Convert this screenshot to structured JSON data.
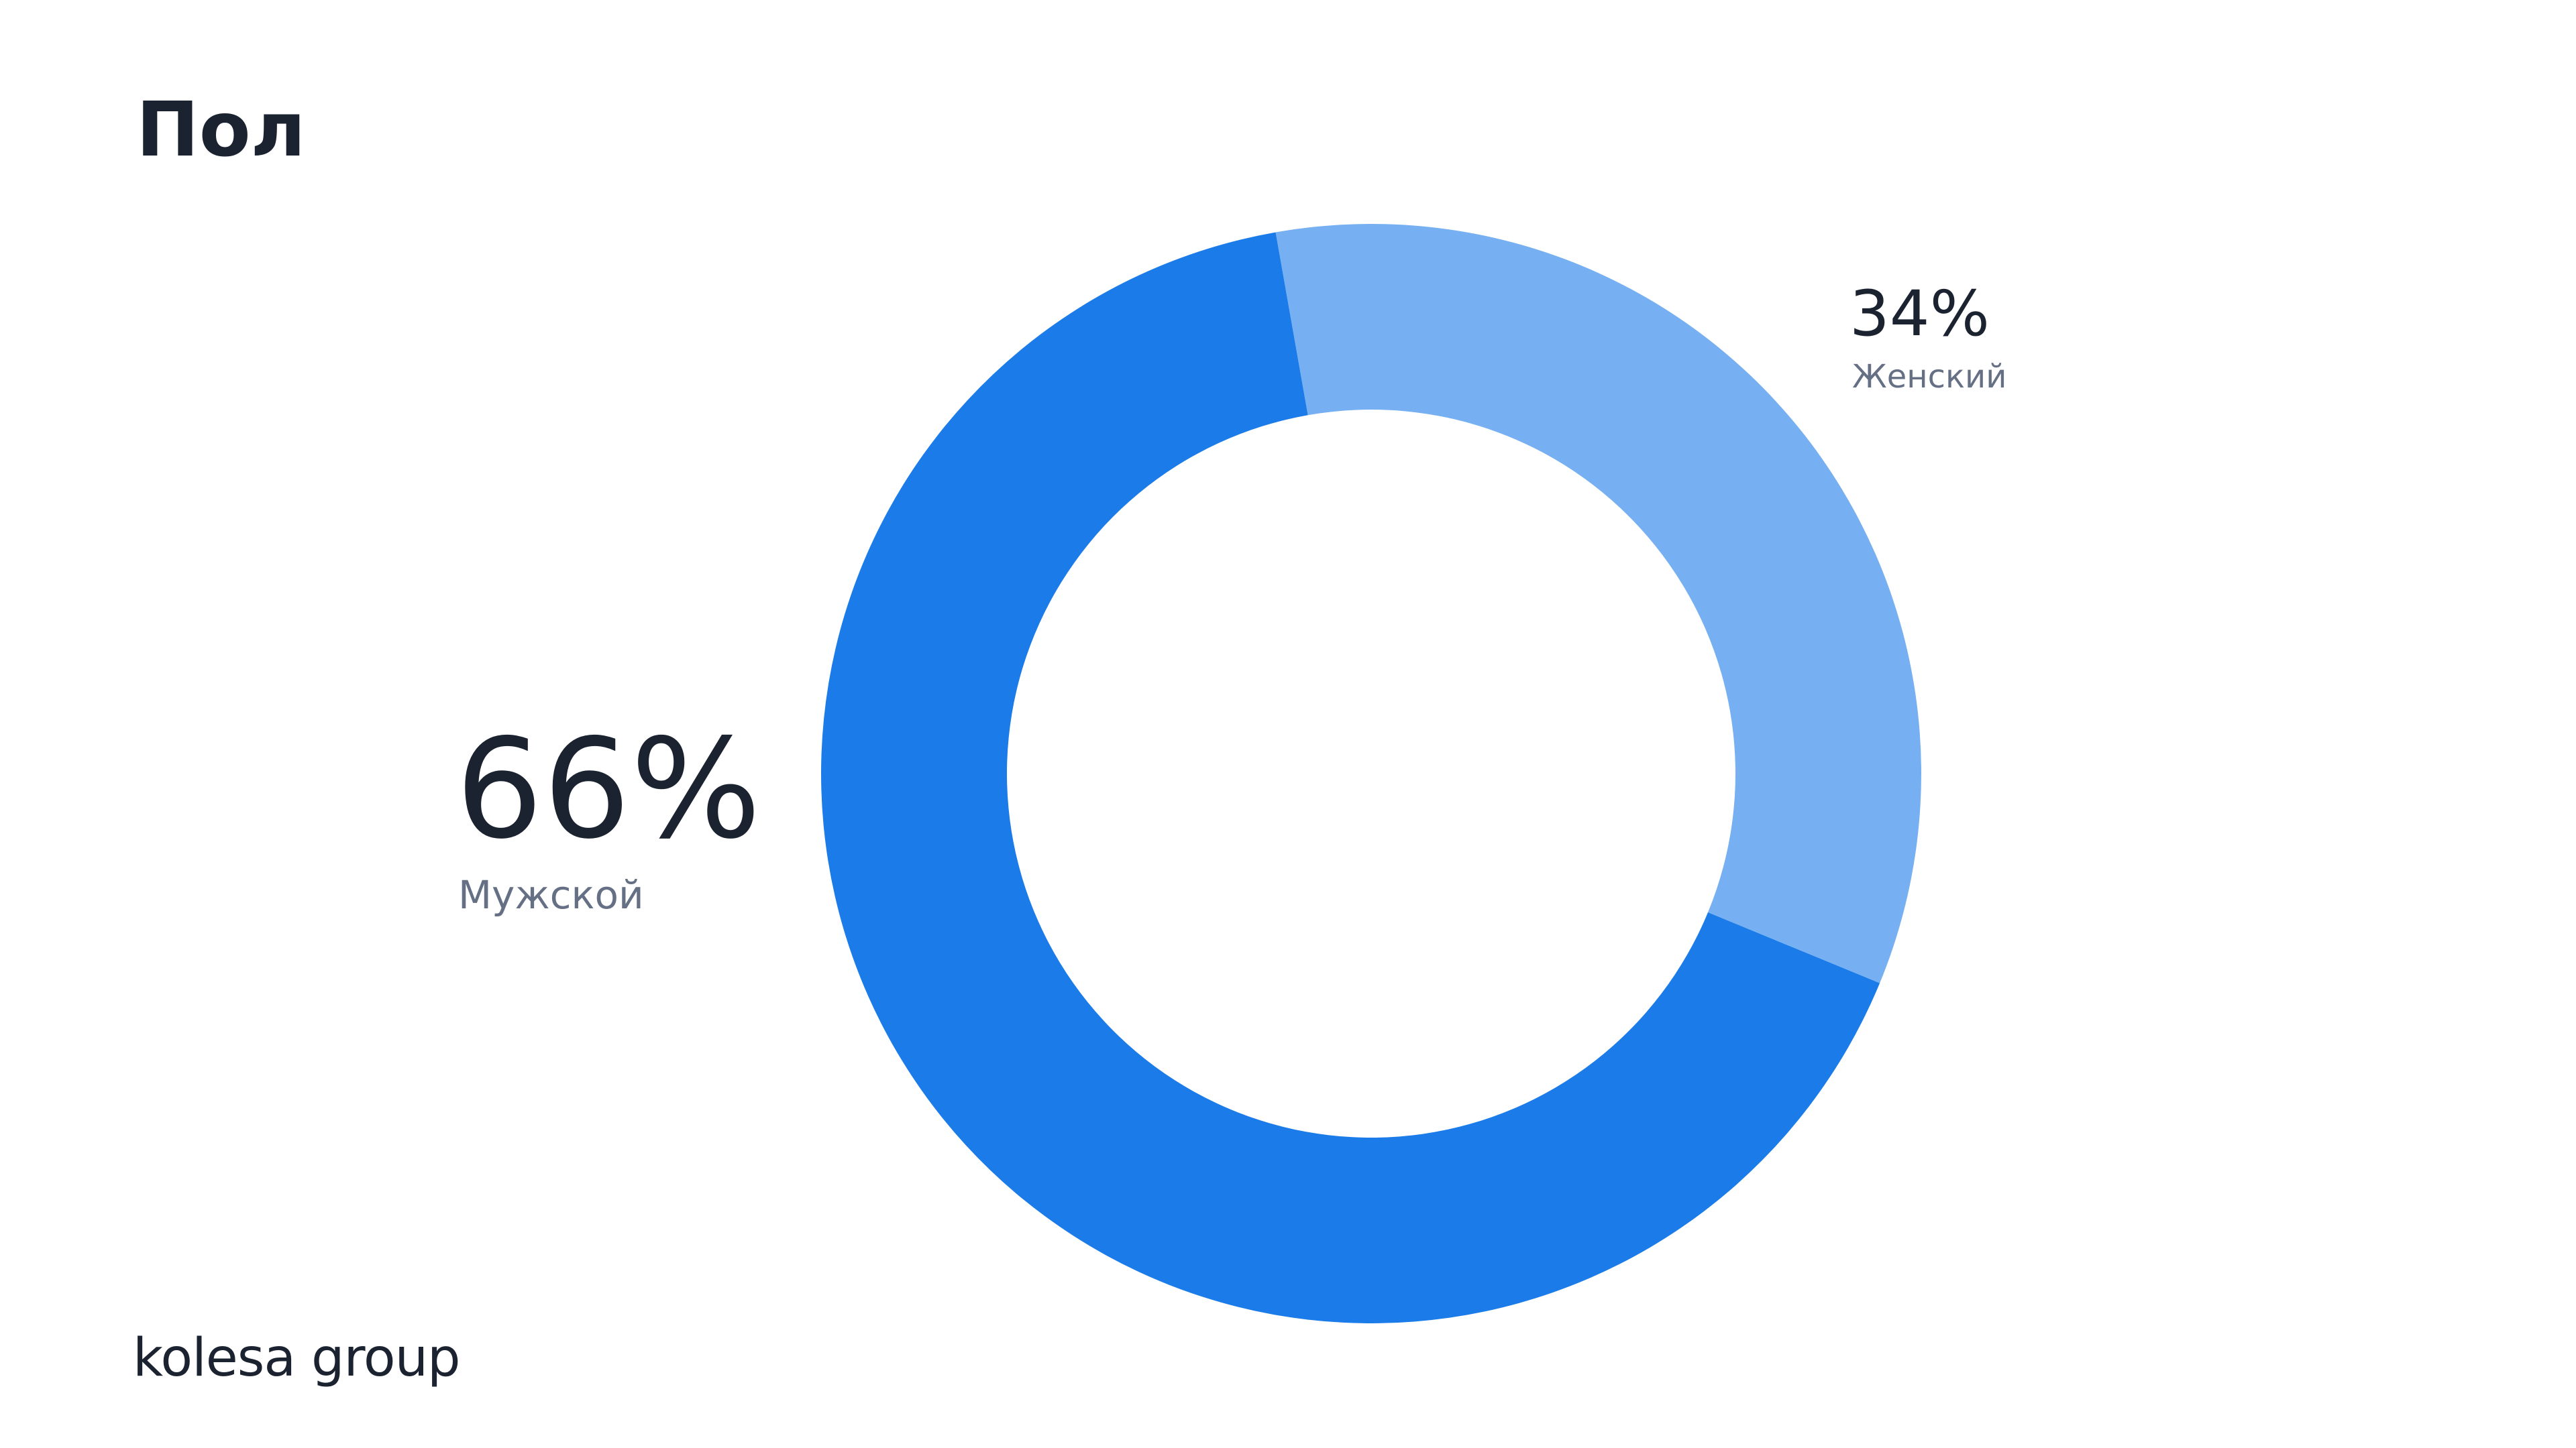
{
  "chart_data": {
    "type": "donut",
    "title": "Пол",
    "categories": [
      "Мужской",
      "Женский"
    ],
    "values": [
      66,
      34
    ],
    "value_labels": [
      "66%",
      "34%"
    ],
    "colors": [
      "#1b7ce9",
      "#76b0f2"
    ]
  },
  "footer": {
    "logo": "kolesa group"
  }
}
